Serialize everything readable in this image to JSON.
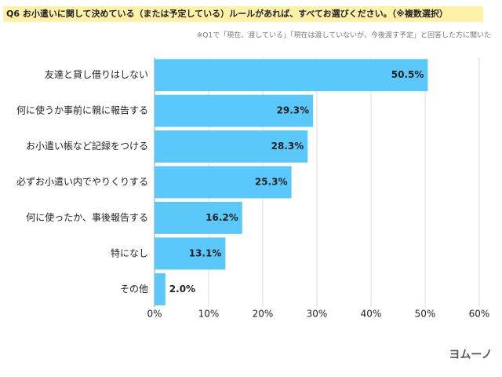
{
  "chart_data": {
    "type": "hbar",
    "title": "Q6 お小遣いに関して決めている（または予定している）ルールがあれば、すべてお選びください。（※複数選択）",
    "subtitle": "※Q1で「現在、渡している」「現在は渡していないが、今後渡す予定」と回答した方に聞いた",
    "categories": [
      "友達と貸し借りはしない",
      "何に使うか事前に親に報告する",
      "お小遣い帳など記録をつける",
      "必ずお小遣い内でやりくりする",
      "何に使ったか、事後報告する",
      "特になし",
      "その他"
    ],
    "values": [
      50.5,
      29.3,
      28.3,
      25.3,
      16.2,
      13.1,
      2.0
    ],
    "value_labels": [
      "50.5%",
      "29.3%",
      "28.3%",
      "25.3%",
      "16.2%",
      "13.1%",
      "2.0%"
    ],
    "color": "#5ac8fa",
    "xlim": [
      0,
      60
    ],
    "xticks": [
      {
        "value": 0,
        "label": "0%"
      },
      {
        "value": 10,
        "label": "10%"
      },
      {
        "value": 20,
        "label": "20%"
      },
      {
        "value": 30,
        "label": "30%"
      },
      {
        "value": 40,
        "label": "40%"
      },
      {
        "value": 50,
        "label": "50%"
      },
      {
        "value": 60,
        "label": "60%"
      }
    ],
    "grid": true,
    "logo": "ヨムーノ"
  }
}
